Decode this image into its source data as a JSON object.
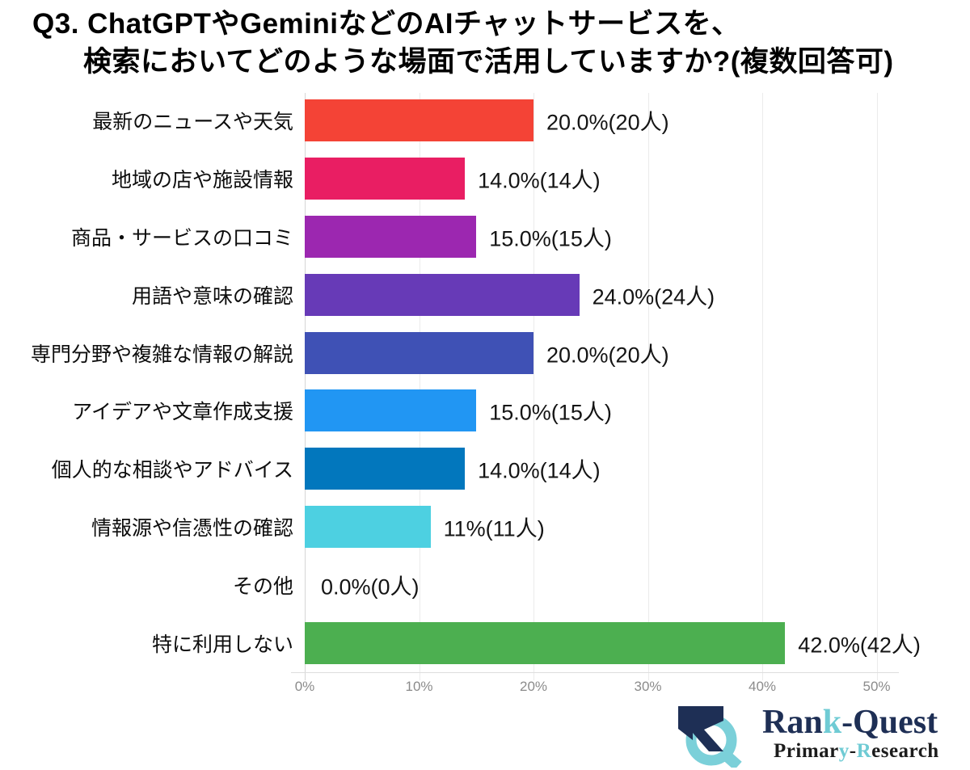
{
  "title": {
    "line1": "Q3. ChatGPTやGeminiなどのAIチャットサービスを、",
    "line2": "検索においてどのような場面で活用していますか?(複数回答可)"
  },
  "chart_data": {
    "type": "bar",
    "orientation": "horizontal",
    "categories": [
      "最新のニュースや天気",
      "地域の店や施設情報",
      "商品・サービスの口コミ",
      "用語や意味の確認",
      "専門分野や複雑な情報の解説",
      "アイデアや文章作成支援",
      "個人的な相談やアドバイス",
      "情報源や信憑性の確認",
      "その他",
      "特に利用しない"
    ],
    "values": [
      20,
      14,
      15,
      24,
      20,
      15,
      14,
      11,
      0,
      42
    ],
    "value_labels": [
      "20.0%(20人)",
      "14.0%(14人)",
      "15.0%(15人)",
      "24.0%(24人)",
      "20.0%(20人)",
      "15.0%(15人)",
      "14.0%(14人)",
      "11%(11人)",
      "0.0%(0人)",
      "42.0%(42人)"
    ],
    "bar_colors": [
      "#f44336",
      "#e91e63",
      "#9c27b0",
      "#673ab7",
      "#3f51b5",
      "#2196f3",
      "#0277bd",
      "#4dd0e1",
      "",
      "#4caf50"
    ],
    "x_ticks": [
      "0%",
      "10%",
      "20%",
      "30%",
      "40%",
      "50%"
    ],
    "x_tick_values": [
      0,
      10,
      20,
      30,
      40,
      50
    ],
    "xlim": [
      0,
      52
    ],
    "grid": "vertical-light",
    "legend": "none"
  },
  "logo": {
    "brand_colors": {
      "navy": "#1e2f55",
      "teal": "#6fcbd4",
      "dark": "#1c1c1c"
    },
    "title_segments": [
      {
        "text": "Ran",
        "color": "#1e2f55"
      },
      {
        "text": "k",
        "color": "#6fcbd4"
      },
      {
        "text": "-Quest",
        "color": "#1e2f55"
      }
    ],
    "subtitle_segments": [
      {
        "text": "Primar",
        "color": "#1c1c1c"
      },
      {
        "text": "y",
        "color": "#6fcbd4"
      },
      {
        "text": "-",
        "color": "#1c1c1c"
      },
      {
        "text": "R",
        "color": "#6fcbd4"
      },
      {
        "text": "esearch",
        "color": "#1c1c1c"
      }
    ]
  }
}
